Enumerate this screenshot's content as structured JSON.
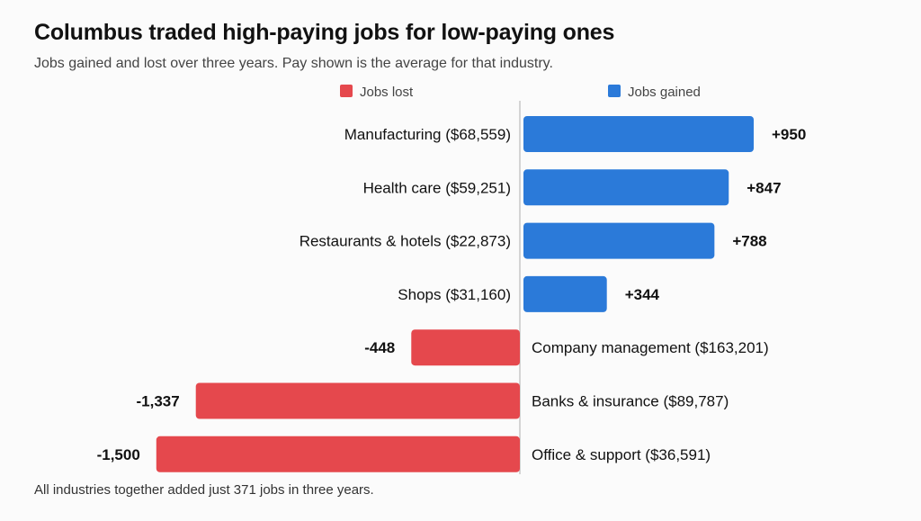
{
  "title": "Columbus traded high-paying jobs for low-paying ones",
  "subtitle": "Jobs gained and lost over three years. Pay shown is the average for that industry.",
  "footnote": "All industries together added just 371 jobs in three years.",
  "colors": {
    "gained": "#2b7ad9",
    "lost": "#e5484d",
    "axis": "#c8c8c8"
  },
  "chart_data": {
    "type": "bar",
    "orientation": "horizontal-diverging",
    "categories": [
      "Manufacturing ($68,559)",
      "Health care ($59,251)",
      "Restaurants & hotels ($22,873)",
      "Shops ($31,160)",
      "Company management ($163,201)",
      "Banks & insurance ($89,787)",
      "Office & support ($36,591)"
    ],
    "values": [
      950,
      847,
      788,
      344,
      -448,
      -1337,
      -1500
    ],
    "value_labels": [
      "+950",
      "+847",
      "+788",
      "+344",
      "-448",
      "-1,337",
      "-1,500"
    ],
    "legend": {
      "lost": "Jobs lost",
      "gained": "Jobs gained"
    },
    "xlim": [
      -1500,
      950
    ],
    "title": "Columbus traded high-paying jobs for low-paying ones",
    "xlabel": "",
    "ylabel": ""
  }
}
